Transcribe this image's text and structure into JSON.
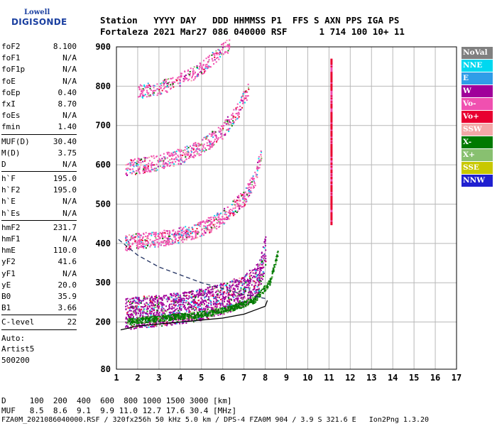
{
  "logo": {
    "line1": "Lowell",
    "line2": "DIGISONDE",
    "icon": "digisonde-logo-icon"
  },
  "header": {
    "line1": "Station   YYYY DAY   DDD HHMMSS P1  FFS S AXN PPS IGA PS",
    "line2": "Fortaleza 2021 Mar27 086 040000 RSF      1 714 100 10+ 11"
  },
  "params": [
    {
      "group": [
        {
          "k": "foF2",
          "v": "8.100"
        },
        {
          "k": "foF1",
          "v": "N/A"
        },
        {
          "k": "foF1p",
          "v": "N/A"
        },
        {
          "k": "foE",
          "v": "N/A"
        },
        {
          "k": "foEp",
          "v": "0.40"
        },
        {
          "k": "fxI",
          "v": "8.70"
        },
        {
          "k": "foEs",
          "v": "N/A"
        },
        {
          "k": "fmin",
          "v": "1.40"
        }
      ]
    },
    {
      "group": [
        {
          "k": "MUF(D)",
          "v": "30.40"
        },
        {
          "k": "M(D)",
          "v": "3.75"
        },
        {
          "k": "D",
          "v": "N/A"
        }
      ]
    },
    {
      "group": [
        {
          "k": "h`F",
          "v": "195.0"
        },
        {
          "k": "h`F2",
          "v": "195.0"
        },
        {
          "k": "h`E",
          "v": "N/A"
        },
        {
          "k": "h`Es",
          "v": "N/A"
        }
      ]
    },
    {
      "group": [
        {
          "k": "hmF2",
          "v": "231.7"
        },
        {
          "k": "hmF1",
          "v": "N/A"
        },
        {
          "k": "hmE",
          "v": "110.0"
        },
        {
          "k": "yF2",
          "v": "41.6"
        },
        {
          "k": "yF1",
          "v": "N/A"
        },
        {
          "k": "yE",
          "v": "20.0"
        },
        {
          "k": "B0",
          "v": "35.9"
        },
        {
          "k": "B1",
          "v": "3.66"
        }
      ]
    },
    {
      "group": [
        {
          "k": "C-level",
          "v": "22"
        }
      ]
    }
  ],
  "auto": [
    "Auto:",
    "Artist5",
    "500200"
  ],
  "legend": [
    {
      "label": "NoVal",
      "color": "#808080"
    },
    {
      "label": "NNE",
      "color": "#00d8f0"
    },
    {
      "label": "E",
      "color": "#2f9de8"
    },
    {
      "label": "W",
      "color": "#a0009a"
    },
    {
      "label": "Vo-",
      "color": "#f050b0"
    },
    {
      "label": "Vo+",
      "color": "#e80030"
    },
    {
      "label": "SSW",
      "color": "#f4a8a8"
    },
    {
      "label": "X-",
      "color": "#007a00"
    },
    {
      "label": "X+",
      "color": "#88c070"
    },
    {
      "label": "SSE",
      "color": "#c8c800"
    },
    {
      "label": "NNW",
      "color": "#2020d0"
    }
  ],
  "footer": {
    "line1": "D     100  200  400  600  800 1000 1500 3000 [km]",
    "line2": "MUF   8.5  8.6  9.1  9.9 11.0 12.7 17.6 30.4 [MHz]",
    "line3": "FZA0M_2021086040000.RSF / 320fx256h 50 kHz 5.0 km / DPS-4 FZA0M 904 / 3.9 S 321.6 E   Ion2Png 1.3.20"
  },
  "chart_data": {
    "type": "scatter",
    "xlim": [
      1,
      17
    ],
    "ylim": [
      80,
      900
    ],
    "x_ticks": [
      1,
      2,
      3,
      4,
      5,
      6,
      7,
      8,
      9,
      10,
      11,
      12,
      13,
      14,
      15,
      16,
      17
    ],
    "y_ticks": [
      80,
      200,
      300,
      400,
      500,
      600,
      700,
      800,
      900
    ],
    "y_tick_labels": [
      "80",
      "200",
      "300",
      "400",
      "500",
      "600",
      "700",
      "800",
      "900"
    ],
    "grid": true,
    "legend_position": "right",
    "traces": [
      {
        "name": "F trace O 1-hop",
        "color": "#a0009a",
        "x": [
          1.4,
          2,
          3,
          4,
          5,
          6,
          7,
          7.7,
          8.0
        ],
        "y": [
          205,
          210,
          215,
          220,
          230,
          245,
          265,
          300,
          370
        ]
      },
      {
        "name": "F trace 2-hop",
        "color": "#f050b0",
        "x": [
          1.4,
          2,
          3,
          4,
          5,
          6,
          7,
          7.5,
          7.8
        ],
        "y": [
          395,
          400,
          405,
          415,
          430,
          460,
          510,
          560,
          620
        ]
      },
      {
        "name": "F trace 3-hop",
        "color": "#f050b0",
        "x": [
          1.4,
          2,
          3,
          4,
          5,
          6,
          6.8,
          7.2
        ],
        "y": [
          585,
          590,
          600,
          615,
          640,
          680,
          740,
          790
        ]
      },
      {
        "name": "F trace 4-hop",
        "color": "#f050b0",
        "x": [
          2,
          3,
          4,
          5,
          5.8,
          6.3
        ],
        "y": [
          780,
          790,
          810,
          840,
          880,
          900
        ]
      },
      {
        "name": "X trace",
        "color": "#007a00",
        "x": [
          1.5,
          2.5,
          3.5,
          4.5,
          5.5,
          6.5,
          7.5,
          8.2,
          8.6
        ],
        "y": [
          200,
          205,
          210,
          215,
          222,
          235,
          255,
          300,
          380
        ]
      }
    ],
    "vertical_band": {
      "color": "#e80030",
      "x": 11.1,
      "y_range": [
        450,
        870
      ]
    },
    "model_profile": {
      "color": "#000",
      "x": [
        1.2,
        2,
        3,
        4,
        5,
        6,
        7,
        7.5,
        8.0,
        8.1
      ],
      "y": [
        180,
        190,
        195,
        200,
        205,
        210,
        220,
        230,
        240,
        255
      ]
    },
    "dashed_profile": {
      "color": "#203060",
      "x": [
        1.1,
        2,
        3,
        4,
        5,
        6,
        7,
        7.5,
        8.0
      ],
      "y": [
        410,
        370,
        340,
        320,
        300,
        285,
        270,
        265,
        260
      ]
    }
  }
}
